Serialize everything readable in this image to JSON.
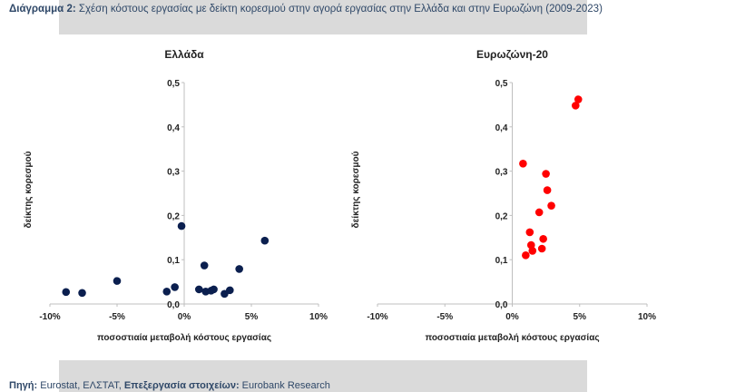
{
  "header": {
    "label": "Διάγραμμα 2:",
    "text": " Σχέση κόστους εργασίας με δείκτη κορεσμού στην αγορά εργασίας στην Ελλάδα και στην Ευρωζώνη (2009-2023)"
  },
  "footer": {
    "source_label": "Πηγή:",
    "source_text": " Eurostat, ΕΛΣΤΑΤ, ",
    "processing_label": "Επεξεργασία στοιχείων:",
    "processing_text": " Eurobank Research"
  },
  "colors": {
    "greece": "#0b1f4f",
    "eurozone": "#ff0000"
  },
  "chart_data": [
    {
      "type": "scatter",
      "title": "Ελλάδα",
      "xlabel": "ποσοστιαία μεταβολή κόστους εργασίας",
      "ylabel": "δείκτης κορεσμού",
      "xlim": [
        -10,
        10
      ],
      "ylim": [
        0,
        0.5
      ],
      "xticks": [
        -10,
        -5,
        0,
        5,
        10
      ],
      "xtick_labels": [
        "-10%",
        "-5%",
        "0%",
        "5%",
        "10%"
      ],
      "yticks": [
        0,
        0.1,
        0.2,
        0.3,
        0.4,
        0.5
      ],
      "ytick_labels": [
        "0,0",
        "0,1",
        "0,2",
        "0,3",
        "0,4",
        "0,5"
      ],
      "points": [
        {
          "x": -8.8,
          "y": 0.027
        },
        {
          "x": -7.6,
          "y": 0.025
        },
        {
          "x": -5.0,
          "y": 0.052
        },
        {
          "x": -0.2,
          "y": 0.176
        },
        {
          "x": -1.3,
          "y": 0.028
        },
        {
          "x": -0.7,
          "y": 0.038
        },
        {
          "x": 1.1,
          "y": 0.033
        },
        {
          "x": 1.5,
          "y": 0.087
        },
        {
          "x": 1.6,
          "y": 0.028
        },
        {
          "x": 2.0,
          "y": 0.03
        },
        {
          "x": 2.2,
          "y": 0.033
        },
        {
          "x": 3.0,
          "y": 0.023
        },
        {
          "x": 3.4,
          "y": 0.031
        },
        {
          "x": 4.1,
          "y": 0.079
        },
        {
          "x": 6.0,
          "y": 0.143
        }
      ]
    },
    {
      "type": "scatter",
      "title": "Ευρωζώνη-20",
      "xlabel": "ποσοστιαία μεταβολή κόστους εργασίας",
      "ylabel": "δείκτης κορεσμού",
      "xlim": [
        -10,
        10
      ],
      "ylim": [
        0,
        0.5
      ],
      "xticks": [
        -10,
        -5,
        0,
        5,
        10
      ],
      "xtick_labels": [
        "-10%",
        "-5%",
        "0%",
        "5%",
        "10%"
      ],
      "yticks": [
        0,
        0.1,
        0.2,
        0.3,
        0.4,
        0.5
      ],
      "ytick_labels": [
        "0,0",
        "0,1",
        "0,2",
        "0,3",
        "0,4",
        "0,5"
      ],
      "points": [
        {
          "x": 0.8,
          "y": 0.317
        },
        {
          "x": 1.0,
          "y": 0.11
        },
        {
          "x": 1.3,
          "y": 0.162
        },
        {
          "x": 1.4,
          "y": 0.133
        },
        {
          "x": 1.5,
          "y": 0.12
        },
        {
          "x": 2.0,
          "y": 0.207
        },
        {
          "x": 2.2,
          "y": 0.125
        },
        {
          "x": 2.3,
          "y": 0.147
        },
        {
          "x": 2.5,
          "y": 0.294
        },
        {
          "x": 2.6,
          "y": 0.257
        },
        {
          "x": 2.9,
          "y": 0.222
        },
        {
          "x": 4.7,
          "y": 0.448
        },
        {
          "x": 4.9,
          "y": 0.462
        }
      ]
    }
  ]
}
